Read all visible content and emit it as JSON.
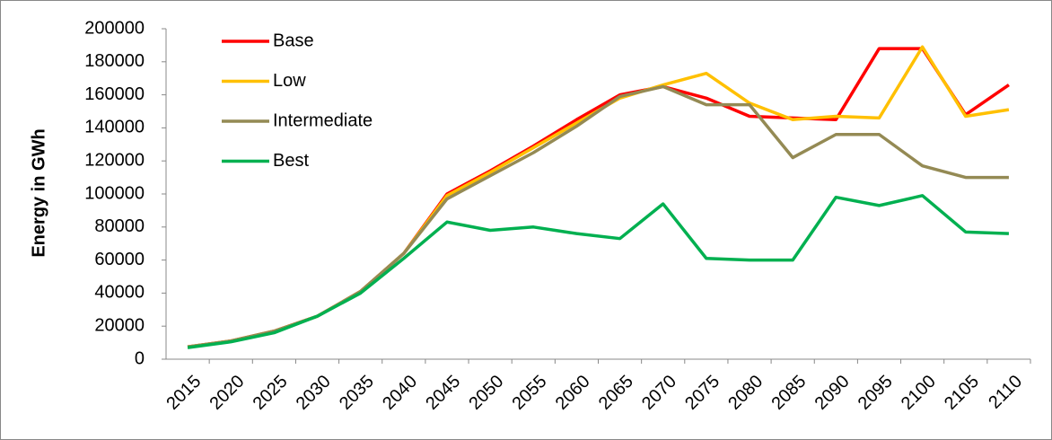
{
  "chart_data": {
    "type": "line",
    "y_label": "Energy in GWh",
    "categories": [
      "2015",
      "2020",
      "2025",
      "2030",
      "2035",
      "2040",
      "2045",
      "2050",
      "2055",
      "2060",
      "2065",
      "2070",
      "2075",
      "2080",
      "2085",
      "2090",
      "2095",
      "2100",
      "2105",
      "2110"
    ],
    "series": [
      {
        "name": "Base",
        "color": "#ff0000",
        "values": [
          7500,
          11000,
          17000,
          26000,
          41000,
          64000,
          100000,
          114000,
          129000,
          145000,
          160000,
          165000,
          158000,
          147000,
          146000,
          145000,
          188000,
          188000,
          148000,
          166000
        ]
      },
      {
        "name": "Low",
        "color": "#ffc000",
        "values": [
          7500,
          11000,
          17000,
          26000,
          41000,
          64000,
          99000,
          113000,
          128000,
          143000,
          158000,
          166000,
          173000,
          155000,
          145000,
          147000,
          146000,
          189000,
          147000,
          151000
        ]
      },
      {
        "name": "Intermediate",
        "color": "#948a54",
        "values": [
          7500,
          11000,
          17000,
          26000,
          41000,
          64000,
          97000,
          111000,
          125000,
          141000,
          159000,
          165000,
          154000,
          154000,
          122000,
          136000,
          136000,
          117000,
          110000,
          110000
        ]
      },
      {
        "name": "Best",
        "color": "#00b050",
        "values": [
          7000,
          10500,
          16000,
          26000,
          40000,
          61000,
          83000,
          78000,
          80000,
          76000,
          73000,
          94000,
          61000,
          60000,
          60000,
          98000,
          93000,
          99000,
          77000,
          76000
        ]
      }
    ],
    "ylim": [
      0,
      200000
    ],
    "yticks": [
      0,
      20000,
      40000,
      60000,
      80000,
      100000,
      120000,
      140000,
      160000,
      180000,
      200000
    ],
    "legend": "top-left"
  }
}
